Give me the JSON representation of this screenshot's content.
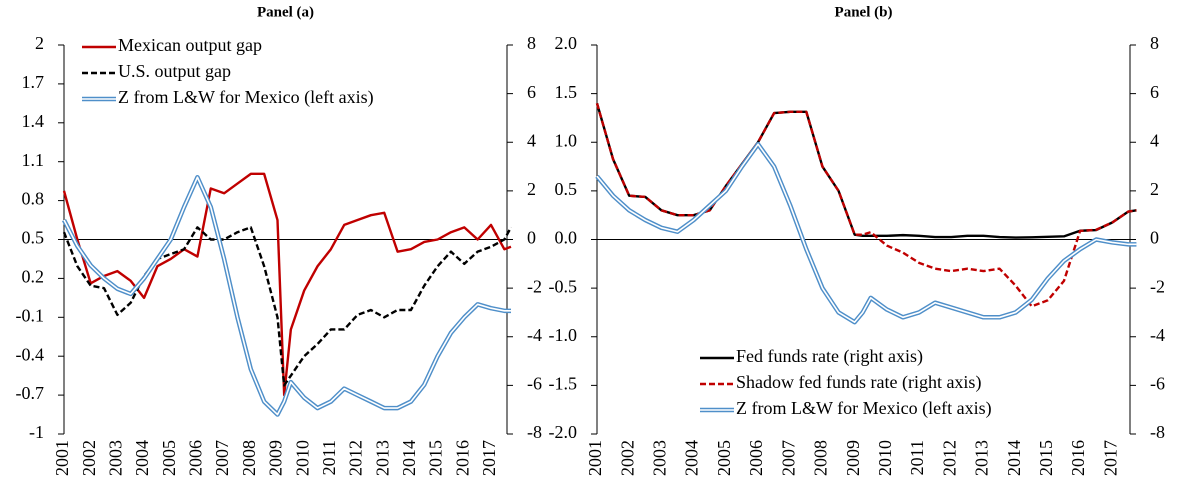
{
  "chart_data": [
    {
      "type": "line",
      "title": "Panel (a)",
      "legend": "upper left",
      "xlim": [
        2001,
        2017.6
      ],
      "xticks": [
        2001,
        2002,
        2003,
        2004,
        2005,
        2006,
        2007,
        2008,
        2009,
        2010,
        2011,
        2012,
        2013,
        2014,
        2015,
        2016,
        2017
      ],
      "ylim": [
        -1,
        2
      ],
      "yticks": [
        -1,
        -0.7,
        -0.4,
        -0.1,
        0.2,
        0.5,
        0.8,
        1.1,
        1.4,
        1.7,
        2
      ],
      "y2lim": [
        -8,
        8
      ],
      "y2ticks": [
        -8,
        -6,
        -4,
        -2,
        0,
        2,
        4,
        6,
        8
      ],
      "x": [
        2001,
        2001.5,
        2002,
        2002.5,
        2003,
        2003.5,
        2004,
        2004.5,
        2005,
        2005.5,
        2006,
        2006.5,
        2007,
        2007.5,
        2008,
        2008.5,
        2009,
        2009.25,
        2009.5,
        2010,
        2010.5,
        2011,
        2011.5,
        2012,
        2012.5,
        2013,
        2013.5,
        2014,
        2014.5,
        2015,
        2015.5,
        2016,
        2016.5,
        2017,
        2017.5,
        2017.75
      ],
      "series": [
        {
          "name": "Mexican output gap",
          "color": "#c00000",
          "line_style": "solid",
          "axis": "y2",
          "values": [
            2.0,
            0.0,
            -1.8,
            -1.5,
            -1.3,
            -1.7,
            -2.4,
            -1.1,
            -0.8,
            -0.4,
            -0.7,
            2.1,
            1.9,
            2.3,
            2.7,
            2.7,
            0.8,
            -6.4,
            -3.7,
            -2.1,
            -1.1,
            -0.4,
            0.6,
            0.8,
            1.0,
            1.1,
            -0.5,
            -0.4,
            -0.1,
            0.0,
            0.3,
            0.5,
            0.0,
            0.6,
            -0.4,
            -0.3
          ]
        },
        {
          "name": "U.S. output gap",
          "color": "#000000",
          "line_style": "dashed",
          "axis": "y2",
          "values": [
            0.3,
            -1.1,
            -1.9,
            -2.0,
            -3.1,
            -2.6,
            -1.5,
            -0.8,
            -0.6,
            -0.4,
            0.5,
            0.0,
            0.0,
            0.3,
            0.5,
            -1.1,
            -3.2,
            -6.0,
            -5.6,
            -4.8,
            -4.3,
            -3.7,
            -3.7,
            -3.1,
            -2.9,
            -3.2,
            -2.9,
            -2.9,
            -1.9,
            -1.1,
            -0.5,
            -1.0,
            -0.5,
            -0.3,
            0.0,
            0.5
          ]
        },
        {
          "name": "Z from L&W for Mexico (left axis)",
          "color": "#4f8fc9",
          "line_style": "double",
          "axis": "y",
          "values": [
            0.65,
            0.45,
            0.3,
            0.2,
            0.12,
            0.08,
            0.2,
            0.35,
            0.5,
            0.75,
            0.98,
            0.75,
            0.35,
            -0.1,
            -0.5,
            -0.75,
            -0.85,
            -0.75,
            -0.6,
            -0.72,
            -0.8,
            -0.75,
            -0.65,
            -0.7,
            -0.75,
            -0.8,
            -0.8,
            -0.75,
            -0.62,
            -0.4,
            -0.22,
            -0.1,
            0.0,
            -0.03,
            -0.05,
            -0.05
          ]
        }
      ]
    },
    {
      "type": "line",
      "title": "Panel (b)",
      "legend": "lower left",
      "xlim": [
        2001,
        2017.55
      ],
      "xticks": [
        2001,
        2002,
        2003,
        2004,
        2005,
        2006,
        2007,
        2008,
        2009,
        2010,
        2011,
        2012,
        2013,
        2014,
        2015,
        2016,
        2017
      ],
      "ylim": [
        -2,
        2
      ],
      "yticks": [
        {
          "value": -2,
          "label": "-2.0"
        },
        -1.5,
        {
          "value": -1,
          "label": "-1.0"
        },
        -0.5,
        {
          "value": 0,
          "label": "0.0"
        },
        0.5,
        {
          "value": 1,
          "label": "1.0"
        },
        1.5,
        {
          "value": 2,
          "label": "2.0"
        }
      ],
      "y2lim": [
        -8,
        8
      ],
      "y2ticks": [
        -8,
        -6,
        -4,
        -2,
        0,
        2,
        4,
        6,
        8
      ],
      "x": [
        2001,
        2001.5,
        2002,
        2002.5,
        2003,
        2003.5,
        2004,
        2004.5,
        2005,
        2005.5,
        2006,
        2006.5,
        2007,
        2007.5,
        2008,
        2008.5,
        2009,
        2009.25,
        2009.5,
        2010,
        2010.5,
        2011,
        2011.5,
        2012,
        2012.5,
        2013,
        2013.5,
        2014,
        2014.5,
        2015,
        2015.5,
        2016,
        2016.5,
        2017,
        2017.5,
        2017.75
      ],
      "series": [
        {
          "name": "Fed funds rate (right axis)",
          "color": "#000000",
          "line_style": "solid",
          "axis": "y2",
          "values": [
            5.6,
            3.3,
            1.8,
            1.75,
            1.2,
            1.0,
            1.0,
            1.2,
            2.2,
            3.1,
            4.0,
            5.2,
            5.25,
            5.25,
            3.0,
            2.0,
            0.2,
            0.15,
            0.15,
            0.15,
            0.18,
            0.15,
            0.1,
            0.1,
            0.15,
            0.15,
            0.1,
            0.08,
            0.09,
            0.11,
            0.13,
            0.36,
            0.39,
            0.7,
            1.15,
            1.2
          ]
        },
        {
          "name": "Shadow fed funds rate (right axis)",
          "color": "#c00000",
          "line_style": "dashed",
          "axis": "y2",
          "values": [
            5.6,
            3.3,
            1.8,
            1.75,
            1.2,
            1.0,
            1.0,
            1.2,
            2.2,
            3.1,
            4.0,
            5.2,
            5.25,
            5.25,
            3.0,
            2.0,
            0.2,
            0.2,
            0.3,
            -0.25,
            -0.54,
            -0.96,
            -1.2,
            -1.3,
            -1.2,
            -1.3,
            -1.2,
            -1.9,
            -2.75,
            -2.5,
            -1.7,
            0.35,
            0.4,
            0.7,
            1.15,
            1.2
          ]
        },
        {
          "name": "Z from L&W for Mexico (left axis)",
          "color": "#4f8fc9",
          "line_style": "double",
          "axis": "y",
          "values": [
            0.65,
            0.45,
            0.3,
            0.2,
            0.12,
            0.08,
            0.2,
            0.35,
            0.5,
            0.75,
            0.98,
            0.75,
            0.35,
            -0.1,
            -0.5,
            -0.75,
            -0.85,
            -0.75,
            -0.6,
            -0.72,
            -0.8,
            -0.75,
            -0.65,
            -0.7,
            -0.75,
            -0.8,
            -0.8,
            -0.75,
            -0.62,
            -0.4,
            -0.22,
            -0.1,
            0.0,
            -0.03,
            -0.05,
            -0.05
          ]
        }
      ]
    }
  ]
}
